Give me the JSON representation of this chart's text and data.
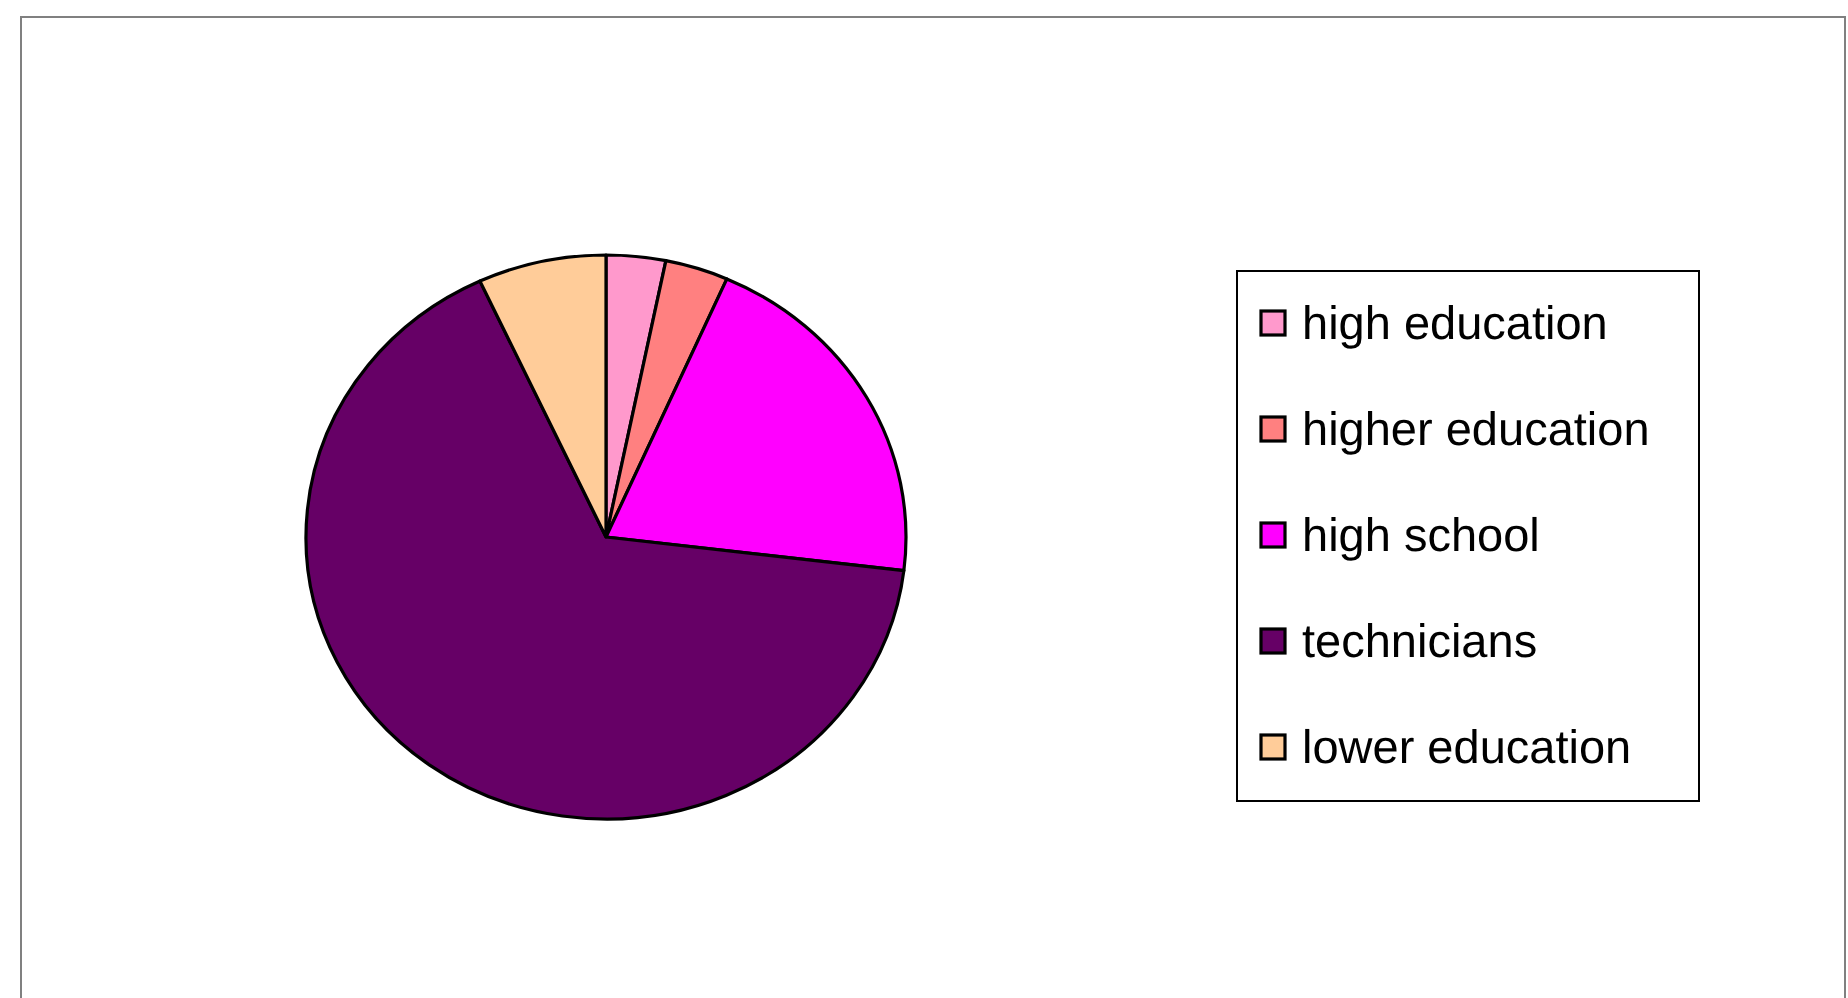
{
  "chart_data": {
    "type": "pie",
    "categories": [
      "high education",
      "higher education",
      "high school",
      "technicians",
      "lower education"
    ],
    "values": [
      3.2,
      3.4,
      20.3,
      66.2,
      6.9
    ],
    "colors": [
      "#ff99cc",
      "#ff8080",
      "#ff00ff",
      "#660066",
      "#ffcc99"
    ],
    "legend": "right"
  }
}
